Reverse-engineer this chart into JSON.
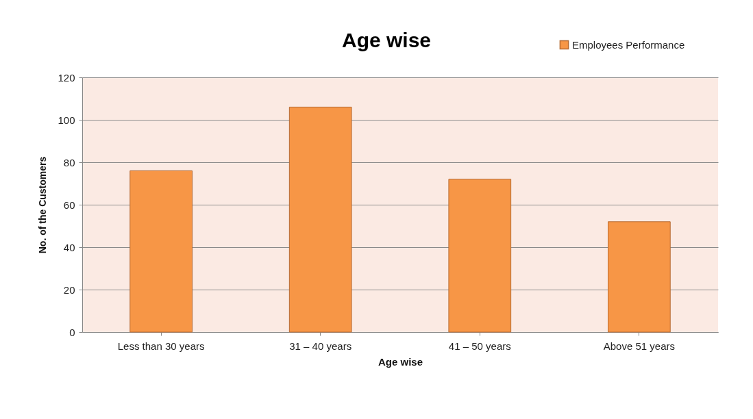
{
  "chart_data": {
    "type": "bar",
    "title": "Age wise",
    "xlabel": "Age wise",
    "ylabel": "No. of the Customers",
    "categories": [
      "Less than 30 years",
      "31 – 40 years",
      "41 – 50 years",
      "Above 51 years"
    ],
    "series": [
      {
        "name": "Employees Performance",
        "color": "#f79646",
        "values": [
          76,
          106,
          72,
          52
        ]
      }
    ],
    "ylim": [
      0,
      120
    ],
    "yticks": [
      0,
      20,
      40,
      60,
      80,
      100,
      120
    ],
    "grid": "y",
    "legend": "top right"
  }
}
